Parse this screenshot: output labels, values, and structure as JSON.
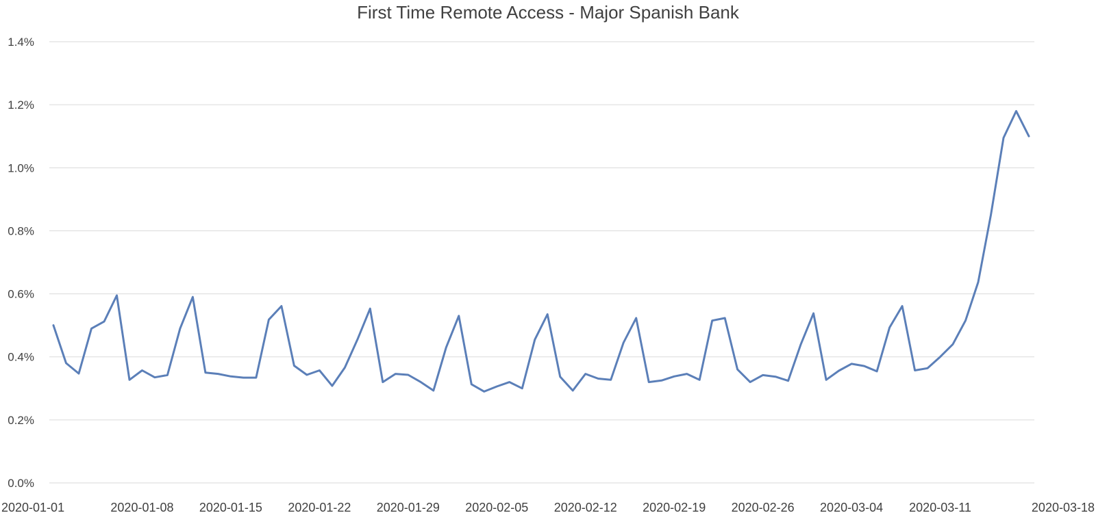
{
  "chart_data": {
    "type": "line",
    "title": "First Time Remote Access - Major Spanish Bank",
    "xlabel": "",
    "ylabel": "",
    "ylim": [
      0,
      1.4
    ],
    "y_unit": "%",
    "y_ticks": [
      "0.0%",
      "0.2%",
      "0.4%",
      "0.6%",
      "0.8%",
      "1.0%",
      "1.2%",
      "1.4%"
    ],
    "x_range": [
      "2020-01-01",
      "2020-03-18"
    ],
    "x_ticks": [
      "2020-01-01",
      "2020-01-08",
      "2020-01-15",
      "2020-01-22",
      "2020-01-29",
      "2020-02-05",
      "2020-02-12",
      "2020-02-19",
      "2020-02-26",
      "2020-03-04",
      "2020-03-11",
      "2020-03-18"
    ],
    "grid": true,
    "legend": "none",
    "color": "#5b7fb8",
    "series": [
      {
        "x": [
          "2020-01-01",
          "2020-01-02",
          "2020-01-03",
          "2020-01-04",
          "2020-01-05",
          "2020-01-06",
          "2020-01-07",
          "2020-01-08",
          "2020-01-09",
          "2020-01-10",
          "2020-01-11",
          "2020-01-12",
          "2020-01-13",
          "2020-01-14",
          "2020-01-15",
          "2020-01-16",
          "2020-01-17",
          "2020-01-18",
          "2020-01-19",
          "2020-01-20",
          "2020-01-21",
          "2020-01-22",
          "2020-01-23",
          "2020-01-24",
          "2020-01-25",
          "2020-01-26",
          "2020-01-27",
          "2020-01-28",
          "2020-01-29",
          "2020-01-30",
          "2020-01-31",
          "2020-02-01",
          "2020-02-02",
          "2020-02-03",
          "2020-02-04",
          "2020-02-05",
          "2020-02-06",
          "2020-02-07",
          "2020-02-08",
          "2020-02-09",
          "2020-02-10",
          "2020-02-11",
          "2020-02-12",
          "2020-02-13",
          "2020-02-14",
          "2020-02-15",
          "2020-02-16",
          "2020-02-17",
          "2020-02-18",
          "2020-02-19",
          "2020-02-20",
          "2020-02-21",
          "2020-02-22",
          "2020-02-23",
          "2020-02-24",
          "2020-02-25",
          "2020-02-26",
          "2020-02-27",
          "2020-02-28",
          "2020-02-29",
          "2020-03-01",
          "2020-03-02",
          "2020-03-03",
          "2020-03-04",
          "2020-03-05",
          "2020-03-06",
          "2020-03-07",
          "2020-03-08",
          "2020-03-09",
          "2020-03-10",
          "2020-03-11",
          "2020-03-12",
          "2020-03-13",
          "2020-03-14",
          "2020-03-15",
          "2020-03-16",
          "2020-03-17",
          "2020-03-18"
        ],
        "values": [
          0.5,
          0.38,
          0.347,
          0.49,
          0.512,
          0.595,
          0.327,
          0.357,
          0.335,
          0.342,
          0.49,
          0.59,
          0.35,
          0.346,
          0.338,
          0.334,
          0.334,
          0.518,
          0.561,
          0.372,
          0.343,
          0.357,
          0.308,
          0.366,
          0.455,
          0.553,
          0.32,
          0.346,
          0.343,
          0.32,
          0.293,
          0.43,
          0.53,
          0.313,
          0.29,
          0.306,
          0.32,
          0.3,
          0.455,
          0.535,
          0.337,
          0.293,
          0.346,
          0.331,
          0.327,
          0.445,
          0.523,
          0.32,
          0.325,
          0.338,
          0.346,
          0.327,
          0.515,
          0.523,
          0.36,
          0.32,
          0.342,
          0.337,
          0.324,
          0.44,
          0.538,
          0.327,
          0.356,
          0.378,
          0.371,
          0.354,
          0.493,
          0.561,
          0.357,
          0.364,
          0.4,
          0.44,
          0.515,
          0.637,
          0.85,
          1.095,
          1.18,
          1.1
        ]
      }
    ]
  }
}
